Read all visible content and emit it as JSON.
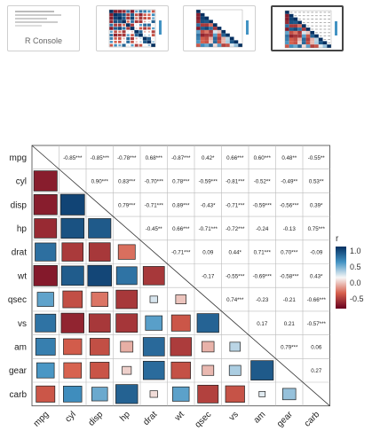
{
  "thumbnails": [
    {
      "name": "thumb-r-console",
      "label": "R Console"
    },
    {
      "name": "thumb-corrplot-full",
      "label": ""
    },
    {
      "name": "thumb-corrplot-lower",
      "label": ""
    },
    {
      "name": "thumb-corrplot-mixed",
      "label": ""
    }
  ],
  "legend": {
    "title": "r",
    "ticks": [
      "1.0",
      "0.5",
      "0.0",
      "-0.5"
    ],
    "colors": {
      "pos": "#2166ac",
      "mid": "#f7f7f7",
      "neg": "#b2182b"
    }
  },
  "chart_data": {
    "type": "heatmap",
    "variables": [
      "mpg",
      "cyl",
      "disp",
      "hp",
      "drat",
      "wt",
      "qsec",
      "vs",
      "am",
      "gear",
      "carb"
    ],
    "x_labels": [
      "mpg",
      "cyl",
      "disp",
      "hp",
      "drat",
      "wt",
      "qsec",
      "vs",
      "am",
      "gear",
      "carb"
    ],
    "legend_position": "right",
    "upper_labels": [
      [
        "",
        "-0.85***",
        "-0.85***",
        "-0.78***",
        "0.68***",
        "-0.87***",
        "0.42*",
        "0.66***",
        "0.60***",
        "0.48**",
        "-0.55**"
      ],
      [
        "",
        "",
        "0.90***",
        "0.83***",
        "-0.70***",
        "0.78***",
        "-0.59***",
        "-0.81***",
        "-0.52**",
        "-0.49**",
        "0.53**"
      ],
      [
        "",
        "",
        "",
        "0.79***",
        "-0.71***",
        "0.89***",
        "-0.43*",
        "-0.71***",
        "-0.59***",
        "-0.56***",
        "0.39*"
      ],
      [
        "",
        "",
        "",
        "",
        "-0.45**",
        "0.66***",
        "-0.71***",
        "-0.72***",
        "-0.24",
        "-0.13",
        "0.75***"
      ],
      [
        "",
        "",
        "",
        "",
        "",
        "-0.71***",
        "0.09",
        "0.44*",
        "0.71***",
        "0.70***",
        "-0.09"
      ],
      [
        "",
        "",
        "",
        "",
        "",
        "",
        "-0.17",
        "-0.55***",
        "-0.69***",
        "-0.58***",
        "0.43*"
      ],
      [
        "",
        "",
        "",
        "",
        "",
        "",
        "",
        "0.74***",
        "-0.23",
        "-0.21",
        "-0.66***"
      ],
      [
        "",
        "",
        "",
        "",
        "",
        "",
        "",
        "",
        "0.17",
        "0.21",
        "-0.57***"
      ],
      [
        "",
        "",
        "",
        "",
        "",
        "",
        "",
        "",
        "",
        "0.79***",
        "0.06"
      ],
      [
        "",
        "",
        "",
        "",
        "",
        "",
        "",
        "",
        "",
        "",
        "0.27"
      ],
      [
        "",
        "",
        "",
        "",
        "",
        "",
        "",
        "",
        "",
        "",
        ""
      ]
    ],
    "r": [
      [
        1,
        -0.85,
        -0.85,
        -0.78,
        0.68,
        -0.87,
        0.42,
        0.66,
        0.6,
        0.48,
        -0.55
      ],
      [
        -0.85,
        1,
        0.9,
        0.83,
        -0.7,
        0.78,
        -0.59,
        -0.81,
        -0.52,
        -0.49,
        0.53
      ],
      [
        -0.85,
        0.9,
        1,
        0.79,
        -0.71,
        0.89,
        -0.43,
        -0.71,
        -0.59,
        -0.56,
        0.39
      ],
      [
        -0.78,
        0.83,
        0.79,
        1,
        -0.45,
        0.66,
        -0.71,
        -0.72,
        -0.24,
        -0.13,
        0.75
      ],
      [
        0.68,
        -0.7,
        -0.71,
        -0.45,
        1,
        -0.71,
        0.09,
        0.44,
        0.71,
        0.7,
        -0.09
      ],
      [
        -0.87,
        0.78,
        0.89,
        0.66,
        -0.71,
        1,
        -0.17,
        -0.55,
        -0.69,
        -0.58,
        0.43
      ],
      [
        0.42,
        -0.59,
        -0.43,
        -0.71,
        0.09,
        -0.17,
        1,
        0.74,
        -0.23,
        -0.21,
        -0.66
      ],
      [
        0.66,
        -0.81,
        -0.71,
        -0.72,
        0.44,
        -0.55,
        0.74,
        1,
        0.17,
        0.21,
        -0.57
      ],
      [
        0.6,
        -0.52,
        -0.59,
        -0.24,
        0.71,
        -0.69,
        -0.23,
        0.17,
        1,
        0.79,
        0.06
      ],
      [
        0.48,
        -0.49,
        -0.56,
        -0.13,
        0.7,
        -0.58,
        -0.21,
        0.21,
        0.79,
        1,
        0.27
      ],
      [
        -0.55,
        0.53,
        0.39,
        0.75,
        -0.09,
        0.43,
        -0.66,
        -0.57,
        0.06,
        0.27,
        1
      ]
    ],
    "color_range": [
      -1,
      1
    ]
  }
}
